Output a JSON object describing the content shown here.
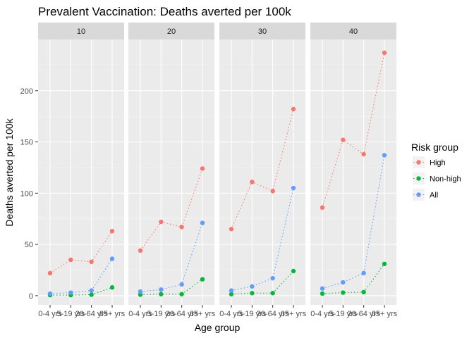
{
  "chart_data": {
    "type": "line",
    "title": "Prevalent Vaccination: Deaths averted per 100k",
    "xlabel": "Age group",
    "ylabel": "Deaths averted per 100k",
    "categories": [
      "0-4 yrs",
      "5-19 yrs",
      "20-64 yrs",
      "65+ yrs"
    ],
    "facets": [
      "10",
      "20",
      "30",
      "40"
    ],
    "yticks": [
      0,
      50,
      100,
      150,
      200
    ],
    "ylim": [
      -9,
      250
    ],
    "grid": true,
    "legend": {
      "title": "Risk group",
      "position": "right",
      "items": [
        "High",
        "Non-high",
        "All"
      ]
    },
    "series": [
      {
        "name": "High",
        "color": "#F8766D",
        "values": [
          [
            22,
            35,
            33,
            63
          ],
          [
            44,
            72,
            67,
            124
          ],
          [
            65,
            111,
            102,
            182
          ],
          [
            86,
            152,
            138,
            237
          ]
        ]
      },
      {
        "name": "Non-high",
        "color": "#00BA38",
        "values": [
          [
            0.5,
            0.5,
            1,
            8
          ],
          [
            1,
            1.5,
            1.5,
            16
          ],
          [
            1.5,
            2.5,
            2.5,
            24
          ],
          [
            2,
            3,
            3.5,
            31
          ]
        ]
      },
      {
        "name": "All",
        "color": "#619CFF",
        "values": [
          [
            2,
            3,
            5,
            36
          ],
          [
            4,
            6,
            11,
            71
          ],
          [
            5,
            9,
            17,
            105
          ],
          [
            7,
            13,
            22,
            137
          ]
        ]
      }
    ]
  }
}
